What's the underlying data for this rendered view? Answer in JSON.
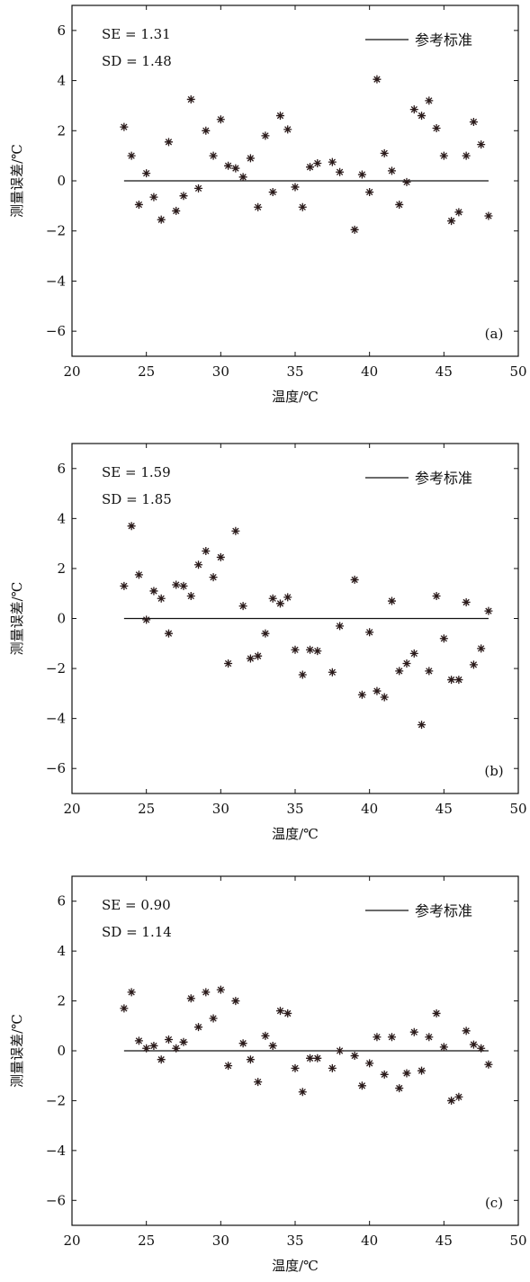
{
  "chart_data": [
    {
      "type": "scatter",
      "panel_label": "(a)",
      "xlabel": "温度/℃",
      "ylabel": "测量误差/℃",
      "xlim": [
        20,
        50
      ],
      "ylim": [
        -7,
        7
      ],
      "x_ticks": [
        "20",
        "25",
        "30",
        "35",
        "40",
        "45",
        "50"
      ],
      "y_ticks": [
        "−6",
        "−4",
        "−2",
        "0",
        "2",
        "4",
        "6"
      ],
      "stats": [
        "SE = 1.31",
        "SD = 1.48"
      ],
      "legend": {
        "label": "参考标准",
        "position": "top-right"
      },
      "reference_line": {
        "y": 0,
        "x_start": 23.5,
        "x_end": 48
      },
      "x": [
        23.5,
        24,
        24.5,
        25,
        25.5,
        26,
        26.5,
        27,
        27.5,
        28,
        28.5,
        29,
        29.5,
        30,
        30.5,
        31,
        31.5,
        32,
        32.5,
        33,
        33.5,
        34,
        34.5,
        35,
        35.5,
        36,
        36.5,
        37.5,
        38,
        39,
        39.5,
        40,
        40.5,
        41,
        41.5,
        42,
        42.5,
        43,
        43.5,
        44,
        44.5,
        45,
        45.5,
        46,
        46.5,
        47,
        47.5,
        48
      ],
      "y": [
        2.15,
        1.0,
        -0.95,
        0.3,
        -0.65,
        -1.55,
        1.55,
        -1.2,
        -0.6,
        3.25,
        -0.3,
        2.0,
        1.0,
        2.45,
        0.6,
        0.5,
        0.15,
        0.9,
        -1.05,
        1.8,
        -0.45,
        2.6,
        2.05,
        -0.25,
        -1.05,
        0.55,
        0.7,
        0.75,
        0.35,
        -1.95,
        0.25,
        -0.45,
        4.05,
        1.1,
        0.4,
        -0.95,
        -0.05,
        2.85,
        2.6,
        3.2,
        2.1,
        1.0,
        -1.6,
        -1.25,
        1.0,
        2.35,
        1.45,
        -1.4
      ]
    },
    {
      "type": "scatter",
      "panel_label": "(b)",
      "xlabel": "温度/℃",
      "ylabel": "测量误差/℃",
      "xlim": [
        20,
        50
      ],
      "ylim": [
        -7,
        7
      ],
      "x_ticks": [
        "20",
        "25",
        "30",
        "35",
        "40",
        "45",
        "50"
      ],
      "y_ticks": [
        "−6",
        "−4",
        "−2",
        "0",
        "2",
        "4",
        "6"
      ],
      "stats": [
        "SE = 1.59",
        "SD = 1.85"
      ],
      "legend": {
        "label": "参考标准",
        "position": "top-right"
      },
      "reference_line": {
        "y": 0,
        "x_start": 23.5,
        "x_end": 48
      },
      "x": [
        23.5,
        24,
        24.5,
        25,
        25.5,
        26,
        26.5,
        27,
        27.5,
        28,
        28.5,
        29,
        29.5,
        30,
        30.5,
        31,
        31.5,
        32,
        32.5,
        33,
        33.5,
        34,
        34.5,
        35,
        35.5,
        36,
        36.5,
        37.5,
        38,
        39,
        39.5,
        40,
        40.5,
        41,
        41.5,
        42,
        42.5,
        43,
        43.5,
        44,
        44.5,
        45,
        45.5,
        46,
        46.5,
        47,
        47.5,
        48
      ],
      "y": [
        1.3,
        3.7,
        1.75,
        -0.05,
        1.1,
        0.8,
        -0.6,
        1.35,
        1.3,
        0.9,
        2.15,
        2.7,
        1.65,
        2.45,
        -1.8,
        3.5,
        0.5,
        -1.6,
        -1.5,
        -0.6,
        0.8,
        0.6,
        0.85,
        -1.25,
        -2.25,
        -1.25,
        -1.3,
        -2.15,
        -0.3,
        1.55,
        -3.05,
        -0.55,
        -2.9,
        -3.15,
        0.7,
        -2.1,
        -1.8,
        -1.4,
        -4.25,
        -2.1,
        0.9,
        -0.8,
        -2.45,
        -2.45,
        0.65,
        -1.85,
        -1.2,
        0.3
      ]
    },
    {
      "type": "scatter",
      "panel_label": "(c)",
      "xlabel": "温度/℃",
      "ylabel": "测量误差/℃",
      "xlim": [
        20,
        50
      ],
      "ylim": [
        -7,
        7
      ],
      "x_ticks": [
        "20",
        "25",
        "30",
        "35",
        "40",
        "45",
        "50"
      ],
      "y_ticks": [
        "−6",
        "−4",
        "−2",
        "0",
        "2",
        "4",
        "6"
      ],
      "stats": [
        "SE = 0.90",
        "SD = 1.14"
      ],
      "legend": {
        "label": "参考标准",
        "position": "top-right"
      },
      "reference_line": {
        "y": 0,
        "x_start": 23.5,
        "x_end": 48
      },
      "x": [
        23.5,
        24,
        24.5,
        25,
        25.5,
        26,
        26.5,
        27,
        27.5,
        28,
        28.5,
        29,
        29.5,
        30,
        30.5,
        31,
        31.5,
        32,
        32.5,
        33,
        33.5,
        34,
        34.5,
        35,
        35.5,
        36,
        36.5,
        37.5,
        38,
        39,
        39.5,
        40,
        40.5,
        41,
        41.5,
        42,
        42.5,
        43,
        43.5,
        44,
        44.5,
        45,
        45.5,
        46,
        46.5,
        47,
        47.5,
        48
      ],
      "y": [
        1.7,
        2.35,
        0.4,
        0.1,
        0.2,
        -0.35,
        0.45,
        0.1,
        0.35,
        2.1,
        0.95,
        2.35,
        1.3,
        2.45,
        -0.6,
        2.0,
        0.3,
        -0.35,
        -1.25,
        0.6,
        0.2,
        1.6,
        1.5,
        -0.7,
        -1.65,
        -0.3,
        -0.3,
        -0.7,
        0.0,
        -0.2,
        -1.4,
        -0.5,
        0.55,
        -0.95,
        0.55,
        -1.5,
        -0.9,
        0.75,
        -0.8,
        0.55,
        1.5,
        0.15,
        -2.0,
        -1.85,
        0.8,
        0.25,
        0.1,
        -0.55
      ]
    }
  ]
}
